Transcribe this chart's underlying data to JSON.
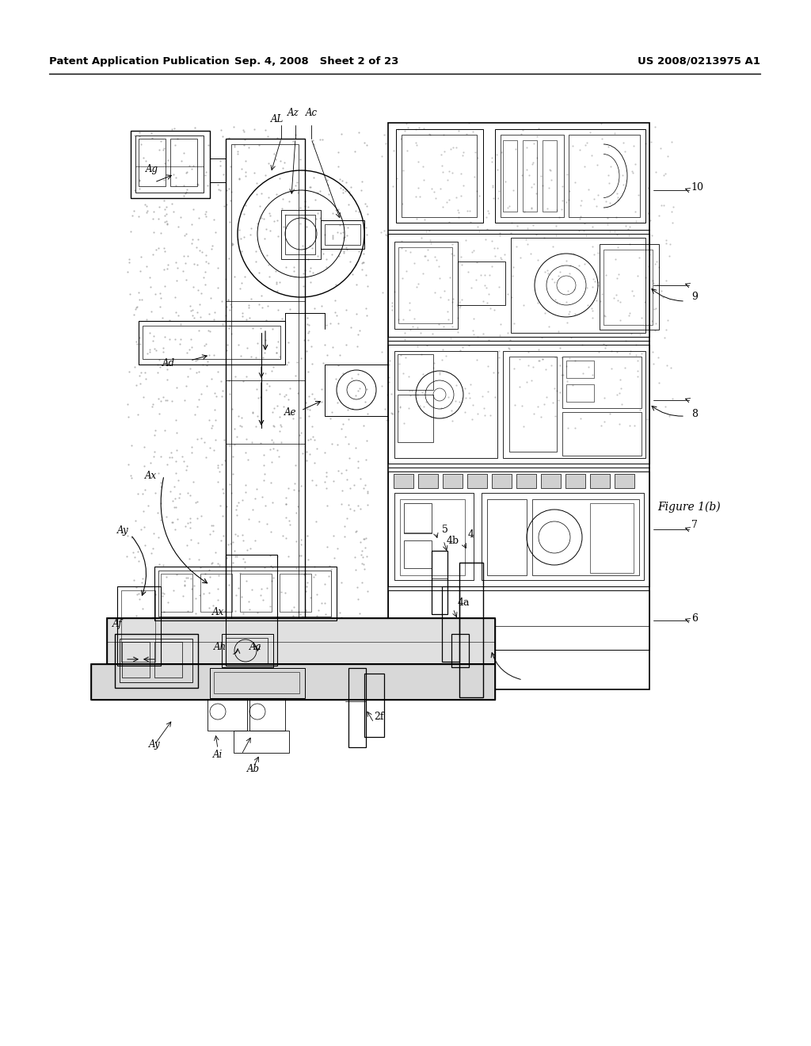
{
  "bg_color": "#ffffff",
  "header_left": "Patent Application Publication",
  "header_center": "Sep. 4, 2008   Sheet 2 of 23",
  "header_right": "US 2008/0213975 A1",
  "figure_label": "Figure 1(b)",
  "header_fontsize": 9.5,
  "label_fontsize": 8.5,
  "number_fontsize": 9
}
